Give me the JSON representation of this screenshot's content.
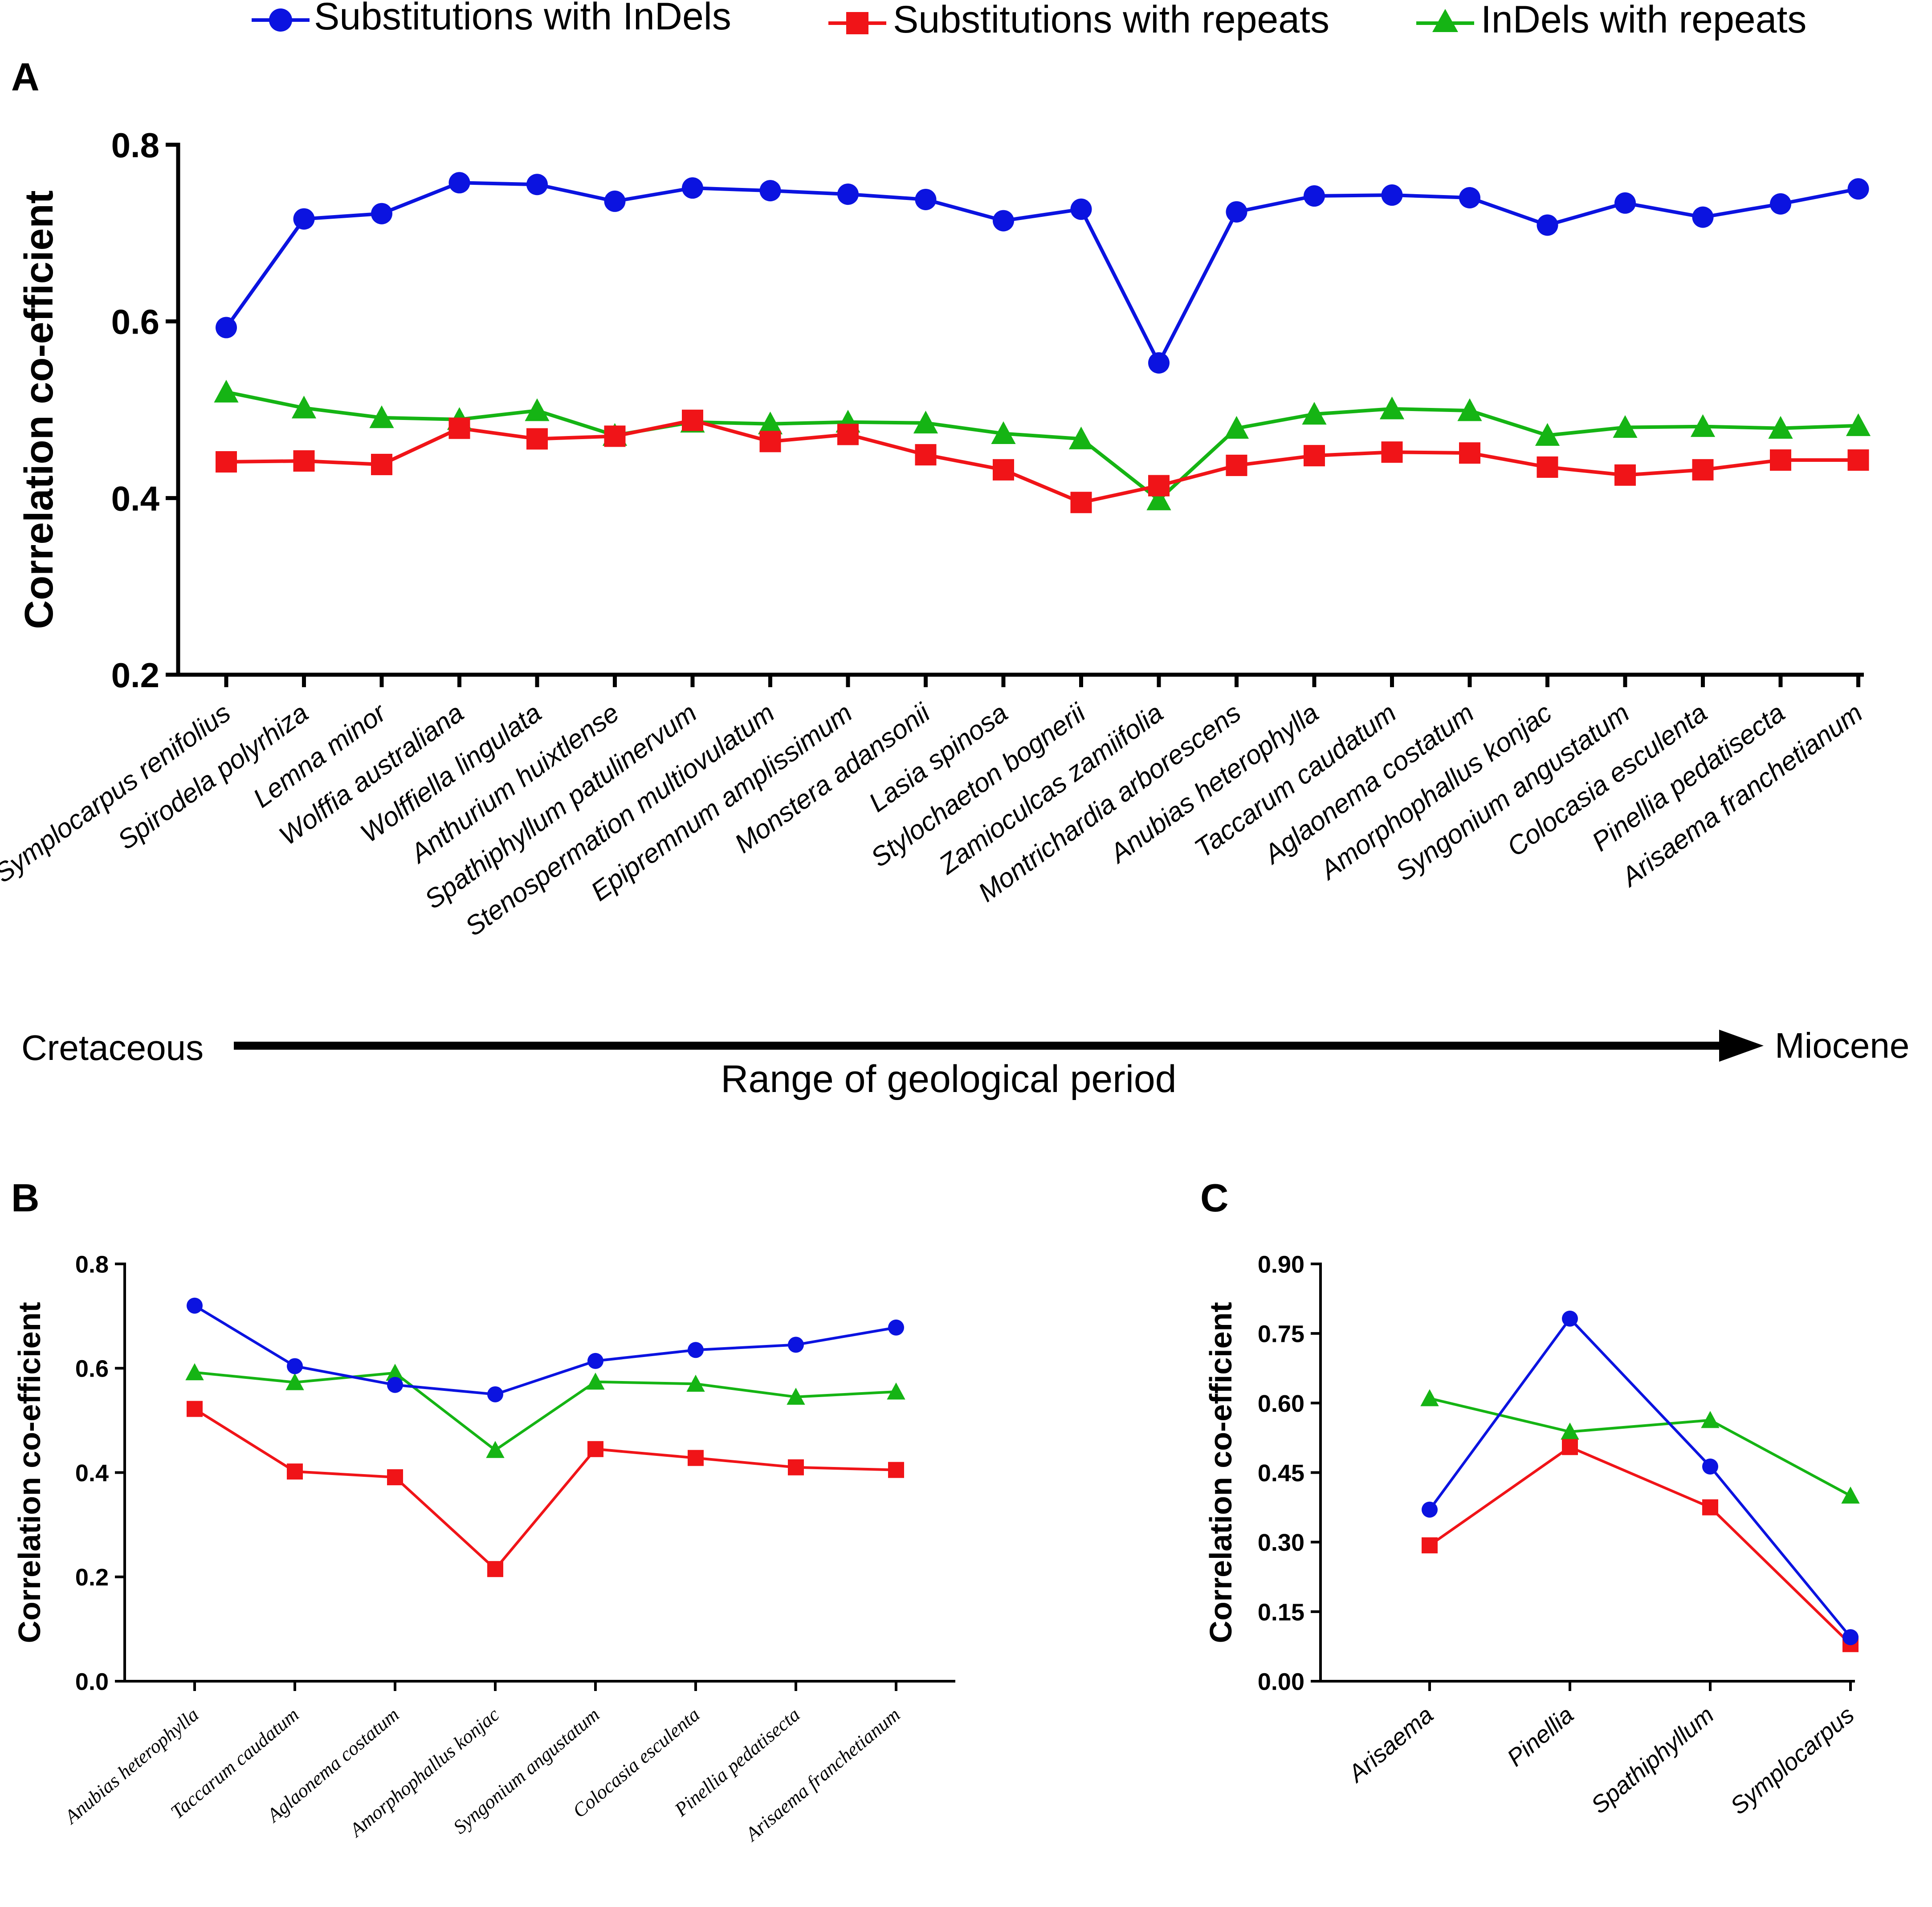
{
  "legend": {
    "items": [
      {
        "label": "Substitutions with InDels",
        "color": "#0b13e0",
        "marker": "circle"
      },
      {
        "label": "Substitutions with repeats",
        "color": "#f01418",
        "marker": "square"
      },
      {
        "label": "InDels with repeats",
        "color": "#15b414",
        "marker": "triangle"
      }
    ]
  },
  "timeline": {
    "start_label": "Cretaceous",
    "end_label": "Miocene",
    "caption": "Range of geological period"
  },
  "chart_data": [
    {
      "panel": "A",
      "type": "line",
      "ylabel": "Correlation co-efficient",
      "ylim": [
        0.2,
        0.8
      ],
      "yticks": [
        "0.2",
        "0.4",
        "0.6",
        "0.8"
      ],
      "categories": [
        "Symplocarpus renifolius",
        "Spirodela polyrhiza",
        "Lemna minor",
        "Wolffia australiana",
        "Wolffiella lingulata",
        "Anthurium huixtlense",
        "Spathiphyllum patulinervum",
        "Stenospermation multiovulatum",
        "Epipremnum amplissimum",
        "Monstera adansonii",
        "Lasia spinosa",
        "Stylochaeton bognerii",
        "Zamioculcas zamiifolia",
        "Montrichardia arborescens",
        "Anubias heterophylla",
        "Taccarum caudatum",
        "Aglaonema costatum",
        "Amorphophallus konjac",
        "Syngonium angustatum",
        "Colocasia esculenta",
        "Pinellia pedatisecta",
        "Arisaema franchetianum"
      ],
      "series": [
        {
          "name": "Substitutions with InDels",
          "values": [
            0.593,
            0.716,
            0.722,
            0.757,
            0.755,
            0.736,
            0.751,
            0.748,
            0.744,
            0.738,
            0.714,
            0.727,
            0.553,
            0.724,
            0.742,
            0.743,
            0.74,
            0.709,
            0.734,
            0.718,
            0.733,
            0.75
          ]
        },
        {
          "name": "Substitutions with repeats",
          "values": [
            0.441,
            0.442,
            0.438,
            0.479,
            0.467,
            0.47,
            0.488,
            0.464,
            0.472,
            0.449,
            0.432,
            0.395,
            0.414,
            0.437,
            0.448,
            0.452,
            0.451,
            0.435,
            0.426,
            0.432,
            0.443,
            0.443
          ]
        },
        {
          "name": "InDels with repeats",
          "values": [
            0.52,
            0.502,
            0.491,
            0.489,
            0.499,
            0.471,
            0.486,
            0.484,
            0.486,
            0.485,
            0.473,
            0.467,
            0.398,
            0.479,
            0.495,
            0.501,
            0.499,
            0.471,
            0.48,
            0.481,
            0.479,
            0.482
          ]
        }
      ]
    },
    {
      "panel": "B",
      "type": "line",
      "ylabel": "Correlation co-efficient",
      "ylim": [
        0.0,
        0.8
      ],
      "yticks": [
        "0.0",
        "0.2",
        "0.4",
        "0.6",
        "0.8"
      ],
      "categories": [
        "Anubias heterophylla",
        "Taccarum caudatum",
        "Aglaonema costatum",
        "Amorphophallus konjac",
        "Syngonium angustatum",
        "Colocasia esculenta",
        "Pinellia pedatisecta",
        "Arisaema franchetianum"
      ],
      "series": [
        {
          "name": "Substitutions with InDels",
          "values": [
            0.72,
            0.604,
            0.568,
            0.55,
            0.614,
            0.635,
            0.645,
            0.678
          ]
        },
        {
          "name": "Substitutions with repeats",
          "values": [
            0.522,
            0.402,
            0.391,
            0.215,
            0.445,
            0.428,
            0.41,
            0.405
          ]
        },
        {
          "name": "InDels with repeats",
          "values": [
            0.592,
            0.573,
            0.591,
            0.443,
            0.574,
            0.57,
            0.545,
            0.555
          ]
        }
      ]
    },
    {
      "panel": "C",
      "type": "line",
      "ylabel": "Correlation co-efficient",
      "ylim": [
        0.0,
        0.9
      ],
      "yticks": [
        "0.00",
        "0.15",
        "0.30",
        "0.45",
        "0.60",
        "0.75",
        "0.90"
      ],
      "categories": [
        "Arisaema",
        "Pinellia",
        "Spathiphyllum",
        "Symplocarpus"
      ],
      "series": [
        {
          "name": "Substitutions with InDels",
          "values": [
            0.37,
            0.782,
            0.463,
            0.095
          ]
        },
        {
          "name": "Substitutions with repeats",
          "values": [
            0.293,
            0.505,
            0.375,
            0.08
          ]
        },
        {
          "name": "InDels with repeats",
          "values": [
            0.61,
            0.538,
            0.563,
            0.4
          ]
        }
      ]
    }
  ]
}
